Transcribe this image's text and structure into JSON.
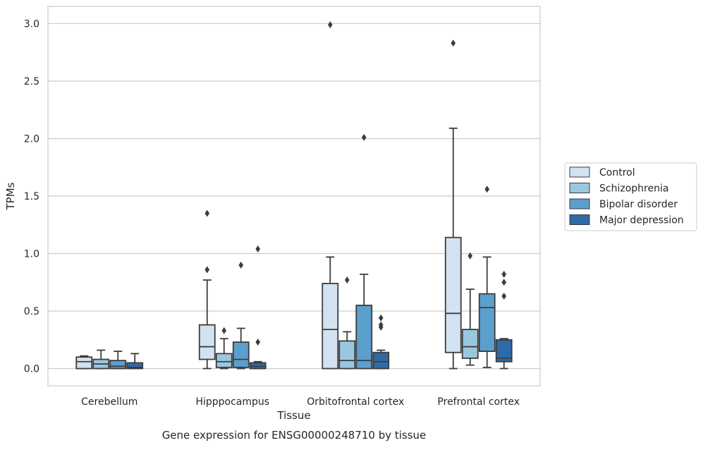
{
  "chart_data": {
    "type": "box",
    "xlabel": "Tissue",
    "ylabel": "TPMs",
    "caption": "Gene expression for ENSG00000248710 by tissue",
    "ylim": [
      -0.15,
      3.15
    ],
    "yticks": [
      0.0,
      0.5,
      1.0,
      1.5,
      2.0,
      2.5,
      3.0
    ],
    "ytick_labels": [
      "0.0",
      "0.5",
      "1.0",
      "1.5",
      "2.0",
      "2.5",
      "3.0"
    ],
    "grid": "horizontal",
    "legend_position": "right",
    "categories": [
      "Cerebellum",
      "Hipppocampus",
      "Orbitofrontal cortex",
      "Prefrontal cortex"
    ],
    "series": [
      {
        "name": "Control",
        "color": "#d2e2f1",
        "boxes": [
          {
            "whislo": 0.0,
            "q1": 0.0,
            "med": 0.06,
            "q3": 0.1,
            "whishi": 0.11,
            "fliers": []
          },
          {
            "whislo": 0.0,
            "q1": 0.08,
            "med": 0.19,
            "q3": 0.38,
            "whishi": 0.77,
            "fliers": [
              0.86,
              1.35
            ]
          },
          {
            "whislo": 0.0,
            "q1": 0.0,
            "med": 0.34,
            "q3": 0.74,
            "whishi": 0.97,
            "fliers": [
              2.99
            ]
          },
          {
            "whislo": 0.0,
            "q1": 0.14,
            "med": 0.48,
            "q3": 1.14,
            "whishi": 2.09,
            "fliers": [
              2.83
            ]
          }
        ]
      },
      {
        "name": "Schizophrenia",
        "color": "#9ac7e0",
        "boxes": [
          {
            "whislo": 0.0,
            "q1": 0.0,
            "med": 0.04,
            "q3": 0.08,
            "whishi": 0.16,
            "fliers": []
          },
          {
            "whislo": 0.0,
            "q1": 0.01,
            "med": 0.06,
            "q3": 0.13,
            "whishi": 0.26,
            "fliers": [
              0.33
            ]
          },
          {
            "whislo": 0.0,
            "q1": 0.0,
            "med": 0.07,
            "q3": 0.24,
            "whishi": 0.32,
            "fliers": [
              0.77
            ]
          },
          {
            "whislo": 0.03,
            "q1": 0.09,
            "med": 0.19,
            "q3": 0.34,
            "whishi": 0.69,
            "fliers": [
              0.98
            ]
          }
        ]
      },
      {
        "name": "Bipolar disorder",
        "color": "#5b9fcd",
        "boxes": [
          {
            "whislo": 0.0,
            "q1": 0.0,
            "med": 0.02,
            "q3": 0.07,
            "whishi": 0.15,
            "fliers": []
          },
          {
            "whislo": 0.0,
            "q1": 0.01,
            "med": 0.08,
            "q3": 0.23,
            "whishi": 0.35,
            "fliers": [
              0.9
            ]
          },
          {
            "whislo": 0.0,
            "q1": 0.0,
            "med": 0.07,
            "q3": 0.55,
            "whishi": 0.82,
            "fliers": [
              2.01
            ]
          },
          {
            "whislo": 0.01,
            "q1": 0.15,
            "med": 0.53,
            "q3": 0.65,
            "whishi": 0.97,
            "fliers": [
              1.56
            ]
          }
        ]
      },
      {
        "name": "Major depression",
        "color": "#2e6aa8",
        "boxes": [
          {
            "whislo": 0.0,
            "q1": 0.0,
            "med": 0.01,
            "q3": 0.05,
            "whishi": 0.13,
            "fliers": []
          },
          {
            "whislo": 0.0,
            "q1": 0.0,
            "med": 0.02,
            "q3": 0.05,
            "whishi": 0.06,
            "fliers": [
              0.23,
              1.04
            ]
          },
          {
            "whislo": 0.0,
            "q1": 0.0,
            "med": 0.06,
            "q3": 0.14,
            "whishi": 0.16,
            "fliers": [
              0.36,
              0.38,
              0.44
            ]
          },
          {
            "whislo": 0.0,
            "q1": 0.06,
            "med": 0.09,
            "q3": 0.25,
            "whishi": 0.26,
            "fliers": [
              0.63,
              0.75,
              0.82
            ]
          }
        ]
      }
    ]
  }
}
